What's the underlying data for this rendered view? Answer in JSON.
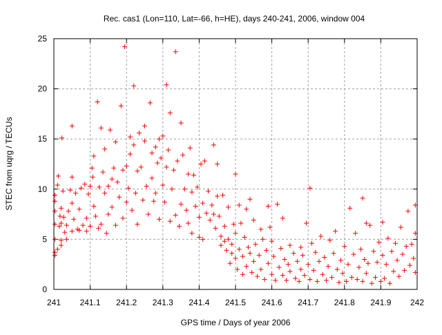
{
  "chart_data": {
    "type": "scatter",
    "title": "Rec. cas1 (Lon=110, Lat=-66, h=HE), days 240-241, 2006, window 004",
    "xlabel": "GPS time / Days of year 2006",
    "ylabel": "STEC from uqrg / TECUs",
    "xlim": [
      241,
      242
    ],
    "ylim": [
      0,
      25
    ],
    "xticks": [
      241,
      241.1,
      241.2,
      241.3,
      241.4,
      241.5,
      241.6,
      241.7,
      241.8,
      241.9,
      242
    ],
    "xtick_labels": [
      "241",
      "241.1",
      "241.2",
      "241.3",
      "241.4",
      "241.5",
      "241.6",
      "241.7",
      "241.8",
      "241.9",
      "242"
    ],
    "yticks": [
      0,
      5,
      10,
      15,
      20,
      25
    ],
    "ytick_labels": [
      "0",
      "5",
      "10",
      "15",
      "20",
      "25"
    ],
    "grid": true,
    "marker": "plus",
    "color": "#ff0000",
    "points": [
      [
        241.003,
        3.4
      ],
      [
        241.003,
        3.7
      ],
      [
        241.003,
        5.0
      ],
      [
        241.003,
        6.5
      ],
      [
        241.003,
        7.8
      ],
      [
        241.003,
        8.8
      ],
      [
        241.003,
        9.4
      ],
      [
        241.01,
        4.0
      ],
      [
        241.01,
        10.4
      ],
      [
        241.012,
        11.3
      ],
      [
        241.015,
        6.3
      ],
      [
        241.017,
        7.3
      ],
      [
        241.02,
        4.4
      ],
      [
        241.02,
        4.9
      ],
      [
        241.02,
        6.6
      ],
      [
        241.02,
        8.1
      ],
      [
        241.022,
        15.1
      ],
      [
        241.025,
        9.8
      ],
      [
        241.027,
        7.2
      ],
      [
        241.03,
        5.7
      ],
      [
        241.035,
        5.0
      ],
      [
        241.035,
        6.4
      ],
      [
        241.04,
        7.8
      ],
      [
        241.045,
        9.9
      ],
      [
        241.05,
        16.3
      ],
      [
        241.05,
        11.2
      ],
      [
        241.05,
        5.8
      ],
      [
        241.05,
        8.6
      ],
      [
        241.055,
        7.0
      ],
      [
        241.06,
        9.6
      ],
      [
        241.065,
        6.0
      ],
      [
        241.07,
        8.0
      ],
      [
        241.07,
        5.9
      ],
      [
        241.075,
        10.1
      ],
      [
        241.08,
        6.4
      ],
      [
        241.085,
        10.5
      ],
      [
        241.09,
        5.8
      ],
      [
        241.09,
        7.1
      ],
      [
        241.095,
        9.5
      ],
      [
        241.1,
        10.3
      ],
      [
        241.1,
        6.3
      ],
      [
        241.105,
        12.1
      ],
      [
        241.107,
        11.2
      ],
      [
        241.11,
        8.3
      ],
      [
        241.11,
        13.3
      ],
      [
        241.115,
        7.3
      ],
      [
        241.12,
        18.7
      ],
      [
        241.123,
        6.1
      ],
      [
        241.125,
        10.2
      ],
      [
        241.13,
        16.1
      ],
      [
        241.13,
        6.5
      ],
      [
        241.135,
        11.7
      ],
      [
        241.14,
        9.6
      ],
      [
        241.14,
        14.0
      ],
      [
        241.145,
        5.6
      ],
      [
        241.15,
        10.3
      ],
      [
        241.15,
        7.5
      ],
      [
        241.155,
        15.9
      ],
      [
        241.16,
        11.0
      ],
      [
        241.16,
        8.2
      ],
      [
        241.165,
        12.1
      ],
      [
        241.17,
        14.7
      ],
      [
        241.17,
        6.4
      ],
      [
        241.175,
        10.7
      ],
      [
        241.18,
        9.2
      ],
      [
        241.185,
        18.3
      ],
      [
        241.19,
        7.1
      ],
      [
        241.19,
        11.9
      ],
      [
        241.195,
        24.2
      ],
      [
        241.2,
        8.7
      ],
      [
        241.2,
        12.3
      ],
      [
        241.205,
        10.1
      ],
      [
        241.21,
        13.5
      ],
      [
        241.21,
        15.2
      ],
      [
        241.215,
        7.9
      ],
      [
        241.22,
        20.3
      ],
      [
        241.22,
        14.4
      ],
      [
        241.225,
        9.6
      ],
      [
        241.23,
        11.8
      ],
      [
        241.23,
        6.5
      ],
      [
        241.235,
        15.6
      ],
      [
        241.24,
        12.2
      ],
      [
        241.245,
        8.9
      ],
      [
        241.25,
        16.3
      ],
      [
        241.25,
        14.8
      ],
      [
        241.255,
        10.3
      ],
      [
        241.26,
        7.5
      ],
      [
        241.265,
        18.6
      ],
      [
        241.27,
        13.6
      ],
      [
        241.27,
        11.1
      ],
      [
        241.275,
        8.8
      ],
      [
        241.28,
        14.2
      ],
      [
        241.28,
        9.6
      ],
      [
        241.285,
        12.6
      ],
      [
        241.29,
        15.0
      ],
      [
        241.29,
        7.0
      ],
      [
        241.295,
        13.1
      ],
      [
        241.3,
        10.4
      ],
      [
        241.3,
        15.3
      ],
      [
        241.305,
        8.7
      ],
      [
        241.31,
        20.4
      ],
      [
        241.31,
        12.2
      ],
      [
        241.315,
        13.9
      ],
      [
        241.32,
        17.6
      ],
      [
        241.32,
        6.8
      ],
      [
        241.325,
        10.0
      ],
      [
        241.33,
        11.9
      ],
      [
        241.335,
        23.7
      ],
      [
        241.335,
        7.4
      ],
      [
        241.34,
        12.8
      ],
      [
        241.345,
        6.3
      ],
      [
        241.35,
        16.6
      ],
      [
        241.35,
        8.5
      ],
      [
        241.355,
        13.4
      ],
      [
        241.36,
        10.0
      ],
      [
        241.365,
        7.9
      ],
      [
        241.37,
        11.5
      ],
      [
        241.37,
        6.6
      ],
      [
        241.375,
        14.1
      ],
      [
        241.38,
        9.7
      ],
      [
        241.38,
        5.6
      ],
      [
        241.385,
        11.4
      ],
      [
        241.39,
        8.3
      ],
      [
        241.395,
        10.2
      ],
      [
        241.4,
        5.2
      ],
      [
        241.4,
        7.2
      ],
      [
        241.405,
        12.5
      ],
      [
        241.41,
        8.6
      ],
      [
        241.41,
        5.0
      ],
      [
        241.415,
        12.8
      ],
      [
        241.42,
        7.6
      ],
      [
        241.425,
        9.8
      ],
      [
        241.43,
        6.9
      ],
      [
        241.435,
        8.4
      ],
      [
        241.44,
        14.4
      ],
      [
        241.44,
        7.5
      ],
      [
        241.445,
        6.1
      ],
      [
        241.45,
        12.5
      ],
      [
        241.45,
        9.3
      ],
      [
        241.455,
        7.3
      ],
      [
        241.46,
        4.4
      ],
      [
        241.46,
        5.3
      ],
      [
        241.465,
        9.4
      ],
      [
        241.47,
        4.8
      ],
      [
        241.47,
        6.3
      ],
      [
        241.475,
        3.9
      ],
      [
        241.48,
        8.2
      ],
      [
        241.48,
        5.0
      ],
      [
        241.485,
        2.6
      ],
      [
        241.49,
        3.6
      ],
      [
        241.49,
        4.5
      ],
      [
        241.495,
        6.5
      ],
      [
        241.5,
        11.5
      ],
      [
        241.5,
        3.1
      ],
      [
        241.5,
        5.6
      ],
      [
        241.505,
        2.0
      ],
      [
        241.51,
        8.4
      ],
      [
        241.51,
        4.0
      ],
      [
        241.515,
        6.6
      ],
      [
        241.52,
        3.3
      ],
      [
        241.52,
        1.5
      ],
      [
        241.525,
        5.2
      ],
      [
        241.53,
        8.0
      ],
      [
        241.53,
        2.3
      ],
      [
        241.535,
        4.2
      ],
      [
        241.54,
        9.0
      ],
      [
        241.54,
        3.6
      ],
      [
        241.545,
        1.7
      ],
      [
        241.55,
        6.9
      ],
      [
        241.55,
        2.8
      ],
      [
        241.555,
        4.5
      ],
      [
        241.56,
        1.3
      ],
      [
        241.565,
        3.4
      ],
      [
        241.57,
        6.0
      ],
      [
        241.57,
        2.0
      ],
      [
        241.575,
        5.0
      ],
      [
        241.58,
        1.0
      ],
      [
        241.585,
        3.9
      ],
      [
        241.59,
        8.3
      ],
      [
        241.59,
        2.6
      ],
      [
        241.595,
        6.2
      ],
      [
        241.6,
        1.5
      ],
      [
        241.6,
        4.8
      ],
      [
        241.605,
        3.3
      ],
      [
        241.61,
        0.9
      ],
      [
        241.615,
        8.5
      ],
      [
        241.62,
        2.2
      ],
      [
        241.625,
        4.1
      ],
      [
        241.63,
        7.1
      ],
      [
        241.63,
        1.4
      ],
      [
        241.635,
        3.0
      ],
      [
        241.64,
        0.9
      ],
      [
        241.645,
        2.5
      ],
      [
        241.65,
        4.4
      ],
      [
        241.65,
        1.8
      ],
      [
        241.66,
        3.6
      ],
      [
        241.665,
        1.1
      ],
      [
        241.67,
        2.8
      ],
      [
        241.675,
        0.8
      ],
      [
        241.68,
        4.2
      ],
      [
        241.68,
        2.0
      ],
      [
        241.685,
        3.4
      ],
      [
        241.69,
        1.4
      ],
      [
        241.695,
        6.6
      ],
      [
        241.7,
        2.5
      ],
      [
        241.705,
        10.1
      ],
      [
        241.705,
        1.0
      ],
      [
        241.71,
        4.6
      ],
      [
        241.715,
        1.9
      ],
      [
        241.72,
        3.7
      ],
      [
        241.725,
        0.8
      ],
      [
        241.73,
        2.8
      ],
      [
        241.735,
        5.3
      ],
      [
        241.74,
        1.5
      ],
      [
        241.745,
        3.2
      ],
      [
        241.75,
        0.9
      ],
      [
        241.755,
        2.3
      ],
      [
        241.76,
        4.9
      ],
      [
        241.765,
        1.2
      ],
      [
        241.77,
        3.6
      ],
      [
        241.775,
        5.8
      ],
      [
        241.78,
        2.0
      ],
      [
        241.785,
        0.7
      ],
      [
        241.79,
        2.9
      ],
      [
        241.795,
        1.6
      ],
      [
        241.8,
        4.3
      ],
      [
        241.805,
        0.8
      ],
      [
        241.81,
        2.5
      ],
      [
        241.815,
        8.1
      ],
      [
        241.82,
        1.2
      ],
      [
        241.825,
        3.5
      ],
      [
        241.83,
        5.6
      ],
      [
        241.835,
        1.0
      ],
      [
        241.84,
        2.2
      ],
      [
        241.845,
        4.0
      ],
      [
        241.85,
        9.1
      ],
      [
        241.85,
        0.8
      ],
      [
        241.855,
        3.0
      ],
      [
        241.86,
        6.6
      ],
      [
        241.86,
        1.6
      ],
      [
        241.865,
        2.6
      ],
      [
        241.87,
        6.4
      ],
      [
        241.875,
        0.6
      ],
      [
        241.88,
        3.8
      ],
      [
        241.885,
        1.2
      ],
      [
        241.89,
        2.7
      ],
      [
        241.895,
        4.7
      ],
      [
        241.9,
        0.8
      ],
      [
        241.905,
        6.7
      ],
      [
        241.905,
        3.4
      ],
      [
        241.91,
        1.1
      ],
      [
        241.915,
        2.5
      ],
      [
        241.92,
        5.1
      ],
      [
        241.925,
        0.6
      ],
      [
        241.93,
        3.8
      ],
      [
        241.935,
        1.8
      ],
      [
        241.94,
        4.6
      ],
      [
        241.945,
        2.9
      ],
      [
        241.95,
        1.3
      ],
      [
        241.955,
        6.2
      ],
      [
        241.96,
        3.5
      ],
      [
        241.965,
        1.9
      ],
      [
        241.97,
        4.3
      ],
      [
        241.975,
        7.8
      ],
      [
        241.98,
        2.4
      ],
      [
        241.985,
        4.5
      ],
      [
        241.99,
        3.1
      ],
      [
        241.995,
        8.4
      ],
      [
        241.995,
        5.6
      ],
      [
        241.995,
        1.7
      ]
    ]
  }
}
